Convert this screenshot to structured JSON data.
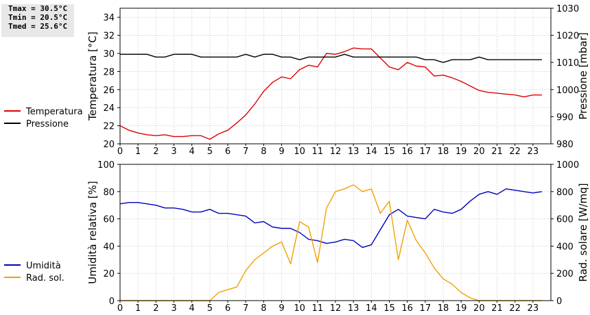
{
  "stats": {
    "tmax": "Tmax = 30.5°C",
    "tmin": "Tmin = 20.5°C",
    "tmed": "Tmed = 25.6°C"
  },
  "chart_data": [
    {
      "type": "line",
      "xlim": [
        0,
        24
      ],
      "x_ticks": [
        "0",
        "1",
        "2",
        "3",
        "4",
        "5",
        "6",
        "7",
        "8",
        "9",
        "10",
        "11",
        "12",
        "13",
        "14",
        "15",
        "16",
        "17",
        "18",
        "19",
        "20",
        "21",
        "22",
        "23"
      ],
      "ylabel": "Temperatura [°C]",
      "ylim": [
        20,
        35
      ],
      "y_ticks": [
        "20",
        "22",
        "24",
        "26",
        "28",
        "30",
        "32",
        "34"
      ],
      "y2label": "Pressione [mbar]",
      "y2lim": [
        980,
        1030
      ],
      "y2_ticks": [
        "980",
        "990",
        "1000",
        "1010",
        "1020",
        "1030"
      ],
      "grid": true,
      "legend_position": "left",
      "x": [
        0,
        0.5,
        1,
        1.5,
        2,
        2.5,
        3,
        3.5,
        4,
        4.5,
        5,
        5.5,
        6,
        6.5,
        7,
        7.5,
        8,
        8.5,
        9,
        9.5,
        10,
        10.5,
        11,
        11.5,
        12,
        12.5,
        13,
        13.5,
        14,
        14.5,
        15,
        15.5,
        16,
        16.5,
        17,
        17.5,
        18,
        18.5,
        19,
        19.5,
        20,
        20.5,
        21,
        21.5,
        22,
        22.5,
        23,
        23.5
      ],
      "series": [
        {
          "name": "Temperatura",
          "axis": "left",
          "color": "#dd0000",
          "values": [
            22.0,
            21.5,
            21.2,
            21.0,
            20.9,
            21.0,
            20.8,
            20.8,
            20.9,
            20.9,
            20.5,
            21.1,
            21.5,
            22.3,
            23.2,
            24.4,
            25.8,
            26.8,
            27.4,
            27.2,
            28.2,
            28.7,
            28.5,
            30.0,
            29.9,
            30.2,
            30.6,
            30.5,
            30.5,
            29.5,
            28.5,
            28.2,
            29.0,
            28.6,
            28.5,
            27.5,
            27.6,
            27.3,
            26.9,
            26.4,
            25.9,
            25.7,
            25.6,
            25.5,
            25.4,
            25.2,
            25.4,
            25.4
          ]
        },
        {
          "name": "Pressione",
          "axis": "right",
          "color": "#000000",
          "values": [
            1013,
            1013,
            1013,
            1013,
            1012,
            1012,
            1013,
            1013,
            1013,
            1012,
            1012,
            1012,
            1012,
            1012,
            1013,
            1012,
            1013,
            1013,
            1012,
            1012,
            1011,
            1012,
            1012,
            1012,
            1012,
            1013,
            1012,
            1012,
            1012,
            1012,
            1012,
            1012,
            1012,
            1012,
            1011,
            1011,
            1010,
            1011,
            1011,
            1011,
            1012,
            1011,
            1011,
            1011,
            1011,
            1011,
            1011,
            1011
          ]
        }
      ]
    },
    {
      "type": "line",
      "xlim": [
        0,
        24
      ],
      "x_ticks": [
        "0",
        "1",
        "2",
        "3",
        "4",
        "5",
        "6",
        "7",
        "8",
        "9",
        "10",
        "11",
        "12",
        "13",
        "14",
        "15",
        "16",
        "17",
        "18",
        "19",
        "20",
        "21",
        "22",
        "23"
      ],
      "ylabel": "Umidità relativa [%]",
      "ylim": [
        0,
        100
      ],
      "y_ticks": [
        "0",
        "20",
        "40",
        "60",
        "80",
        "100"
      ],
      "y2label": "Rad. solare [W/mq]",
      "y2lim": [
        0,
        1000
      ],
      "y2_ticks": [
        "0",
        "200",
        "400",
        "600",
        "800",
        "1000"
      ],
      "grid": true,
      "legend_position": "left",
      "x": [
        0,
        0.5,
        1,
        1.5,
        2,
        2.5,
        3,
        3.5,
        4,
        4.5,
        5,
        5.5,
        6,
        6.5,
        7,
        7.5,
        8,
        8.5,
        9,
        9.5,
        10,
        10.5,
        11,
        11.5,
        12,
        12.5,
        13,
        13.5,
        14,
        14.5,
        15,
        15.5,
        16,
        16.5,
        17,
        17.5,
        18,
        18.5,
        19,
        19.5,
        20,
        20.5,
        21,
        21.5,
        22,
        22.5,
        23,
        23.5
      ],
      "series": [
        {
          "name": "Umidità",
          "axis": "left",
          "color": "#0000bb",
          "values": [
            71,
            72,
            72,
            71,
            70,
            68,
            68,
            67,
            65,
            65,
            67,
            64,
            64,
            63,
            62,
            57,
            58,
            54,
            53,
            53,
            50,
            45,
            44,
            42,
            43,
            45,
            44,
            39,
            41,
            52,
            63,
            67,
            62,
            61,
            60,
            67,
            65,
            64,
            67,
            73,
            78,
            80,
            78,
            82,
            81,
            80,
            79,
            80
          ]
        },
        {
          "name": "Rad. sol.",
          "axis": "right",
          "color": "#f0a000",
          "values": [
            0,
            0,
            0,
            0,
            0,
            0,
            0,
            0,
            0,
            0,
            0,
            60,
            80,
            100,
            220,
            300,
            350,
            400,
            430,
            270,
            580,
            540,
            280,
            680,
            800,
            820,
            850,
            800,
            820,
            640,
            730,
            300,
            590,
            440,
            350,
            240,
            160,
            120,
            60,
            20,
            0,
            0,
            0,
            0,
            0,
            0,
            0,
            0
          ]
        }
      ]
    }
  ]
}
